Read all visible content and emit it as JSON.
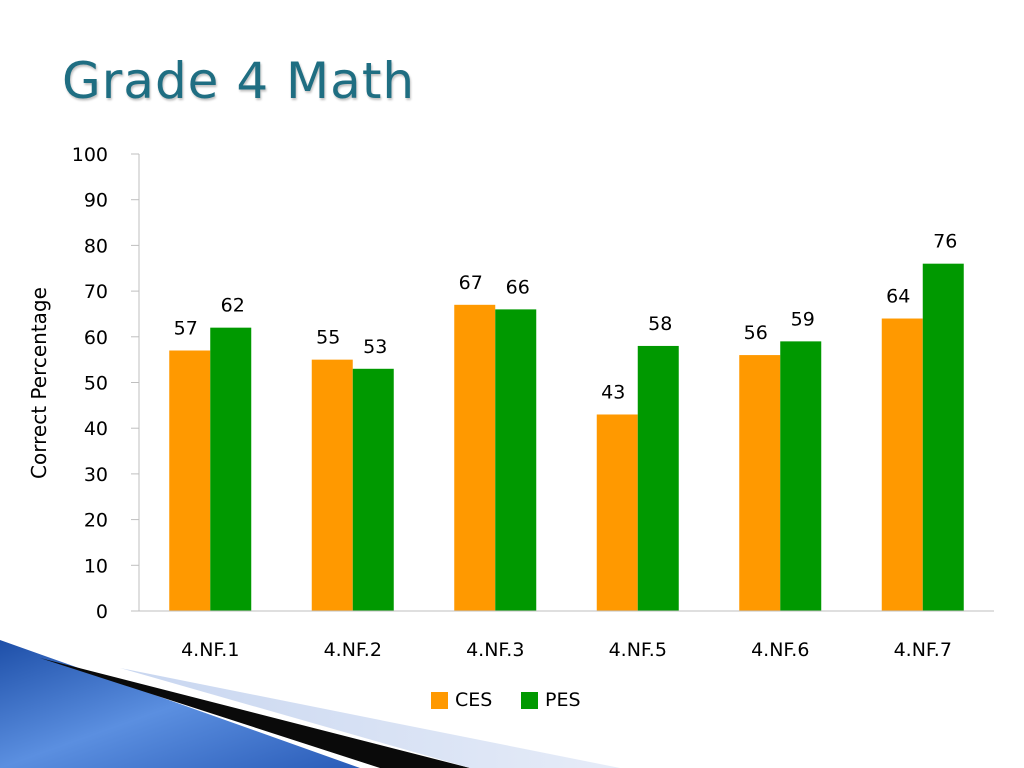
{
  "slide": {
    "title": "Grade 4 Math"
  },
  "colors": {
    "title": "#1F6E82",
    "CES": "#FF9900",
    "PES": "#009900",
    "axis": "#BFBFBF"
  },
  "chart_data": {
    "type": "bar",
    "categories": [
      "4.NF.1",
      "4.NF.2",
      "4.NF.3",
      "4.NF.5",
      "4.NF.6",
      "4.NF.7"
    ],
    "series": [
      {
        "name": "CES",
        "values": [
          57,
          55,
          67,
          43,
          56,
          64
        ]
      },
      {
        "name": "PES",
        "values": [
          62,
          53,
          66,
          58,
          59,
          76
        ]
      }
    ],
    "ylabel": "Correct Percentage",
    "ylim": [
      0,
      100
    ],
    "yticks": [
      0,
      10,
      20,
      30,
      40,
      50,
      60,
      70,
      80,
      90,
      100
    ],
    "legend_position": "bottom",
    "data_labels": true,
    "grid": false
  }
}
